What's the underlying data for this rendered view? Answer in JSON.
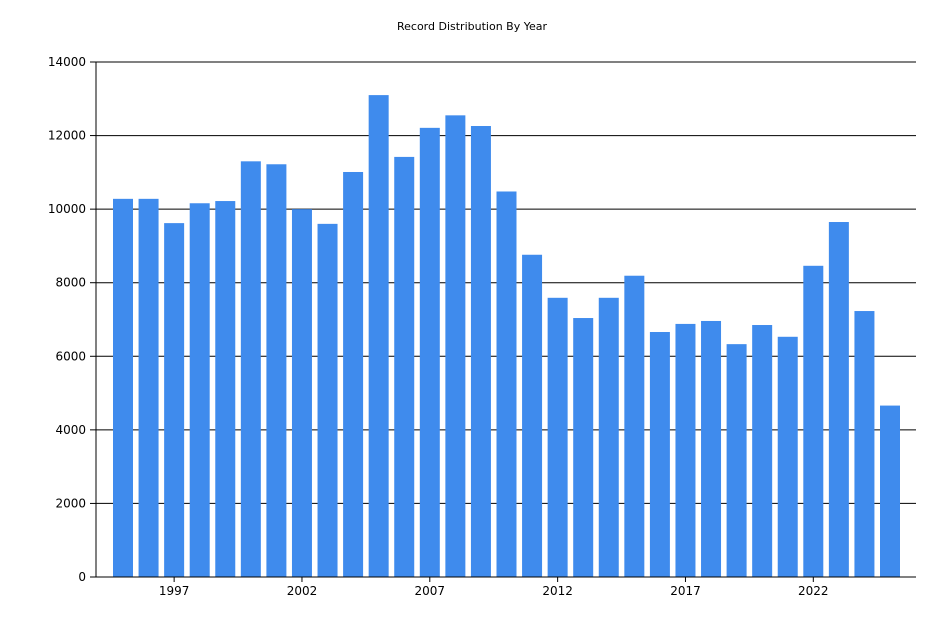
{
  "chart_data": {
    "type": "bar",
    "title": "Record Distribution By Year",
    "xlabel": "",
    "ylabel": "",
    "x": [
      1995,
      1996,
      1997,
      1998,
      1999,
      2000,
      2001,
      2002,
      2003,
      2004,
      2005,
      2006,
      2007,
      2008,
      2009,
      2010,
      2011,
      2012,
      2013,
      2014,
      2015,
      2016,
      2017,
      2018,
      2019,
      2020,
      2021,
      2022,
      2023,
      2024,
      2025
    ],
    "values": [
      10280,
      10280,
      9620,
      10160,
      10220,
      11300,
      11220,
      10000,
      9600,
      11010,
      13100,
      11420,
      12210,
      12550,
      12260,
      10480,
      8760,
      7590,
      7040,
      7590,
      8190,
      6660,
      6880,
      6960,
      6330,
      6850,
      6530,
      8460,
      9650,
      7230,
      4660
    ],
    "ylim": [
      0,
      14000
    ],
    "y_ticks": [
      "0",
      "2000",
      "4000",
      "6000",
      "8000",
      "10000",
      "12000",
      "14000"
    ],
    "x_ticks": [
      "1997",
      "2002",
      "2007",
      "2012",
      "2017",
      "2022"
    ],
    "grid": "horizontal",
    "legend": "none",
    "bar_color": "#3f8bed"
  }
}
